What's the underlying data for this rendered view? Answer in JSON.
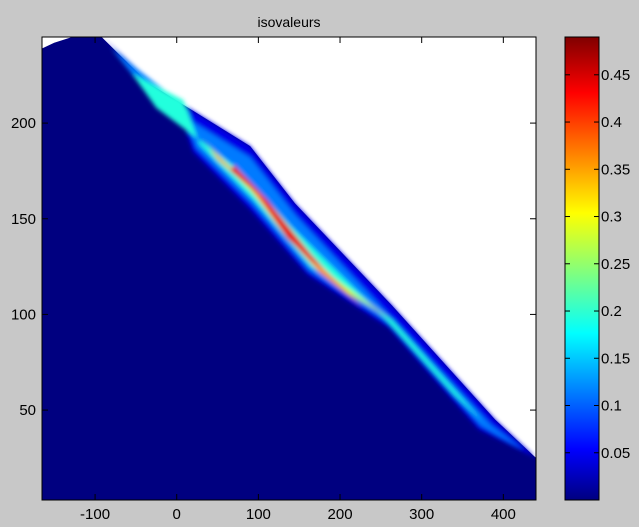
{
  "window": {
    "title": "isovaleurs"
  },
  "chart_data": {
    "type": "heatmap",
    "title": "isovaleurs",
    "xlabel": "",
    "ylabel": "",
    "xlim": [
      -165,
      440
    ],
    "ylim": [
      3,
      245
    ],
    "xticks": [
      -100,
      0,
      100,
      200,
      300,
      400
    ],
    "yticks": [
      50,
      100,
      150,
      200
    ],
    "grid": false,
    "background_color": "#ffffff",
    "colormap": "jet",
    "colorbar": {
      "range": [
        0,
        0.49
      ],
      "ticks": [
        0.05,
        0.1,
        0.15,
        0.2,
        0.25,
        0.3,
        0.35,
        0.4,
        0.45
      ],
      "placement": "right"
    },
    "domain_boundary": [
      [
        -165,
        239
      ],
      [
        -150,
        242
      ],
      [
        -128,
        245
      ],
      [
        -92,
        245
      ],
      [
        -35,
        221
      ],
      [
        90,
        188
      ],
      [
        145,
        158
      ],
      [
        263,
        105
      ],
      [
        390,
        45
      ],
      [
        440,
        25
      ],
      [
        440,
        3
      ],
      [
        -165,
        3
      ]
    ],
    "slip_surface": [
      [
        -92,
        245
      ],
      [
        0,
        210
      ],
      [
        20,
        185
      ],
      [
        90,
        155
      ],
      [
        160,
        121
      ],
      [
        260,
        93
      ],
      [
        370,
        40
      ],
      [
        440,
        25
      ]
    ],
    "bands": [
      {
        "value": 0.05,
        "polygon": [
          [
            -92,
            245
          ],
          [
            -35,
            221
          ],
          [
            90,
            188
          ],
          [
            145,
            158
          ],
          [
            263,
            105
          ],
          [
            390,
            45
          ],
          [
            440,
            25
          ],
          [
            370,
            40
          ],
          [
            260,
            93
          ],
          [
            160,
            121
          ],
          [
            90,
            155
          ],
          [
            20,
            185
          ],
          [
            0,
            210
          ]
        ]
      },
      {
        "value": 0.12,
        "polygon": [
          [
            -80,
            239
          ],
          [
            -35,
            215
          ],
          [
            90,
            182
          ],
          [
            145,
            152
          ],
          [
            263,
            98
          ],
          [
            385,
            42
          ],
          [
            425,
            29
          ],
          [
            372,
            42
          ],
          [
            262,
            95
          ],
          [
            162,
            123
          ],
          [
            92,
            158
          ],
          [
            24,
            187
          ],
          [
            3,
            211
          ]
        ]
      },
      {
        "value": 0.2,
        "polygon": [
          [
            -55,
            226
          ],
          [
            -25,
            208
          ],
          [
            75,
            176
          ],
          [
            140,
            146
          ],
          [
            255,
            98
          ],
          [
            340,
            58
          ],
          [
            400,
            34
          ],
          [
            375,
            44
          ],
          [
            264,
            97
          ],
          [
            164,
            125
          ],
          [
            94,
            160
          ],
          [
            28,
            189
          ],
          [
            8,
            212
          ]
        ]
      },
      {
        "value": 0.28,
        "polygon": [
          [
            30,
            192
          ],
          [
            80,
            171
          ],
          [
            135,
            142
          ],
          [
            200,
            114
          ],
          [
            264,
            97
          ],
          [
            166,
            127
          ],
          [
            96,
            162
          ],
          [
            32,
            191
          ]
        ]
      },
      {
        "value": 0.36,
        "polygon": [
          [
            50,
            181
          ],
          [
            90,
            166
          ],
          [
            130,
            143
          ],
          [
            175,
            122
          ],
          [
            228,
            104
          ],
          [
            168,
            129
          ],
          [
            100,
            163
          ],
          [
            40,
            187
          ]
        ]
      },
      {
        "value": 0.44,
        "polygon": [
          [
            66,
            175
          ],
          [
            100,
            163
          ],
          [
            135,
            140
          ],
          [
            165,
            128
          ],
          [
            180,
            124
          ],
          [
            165,
            131
          ],
          [
            110,
            160
          ],
          [
            70,
            178
          ]
        ]
      }
    ]
  }
}
